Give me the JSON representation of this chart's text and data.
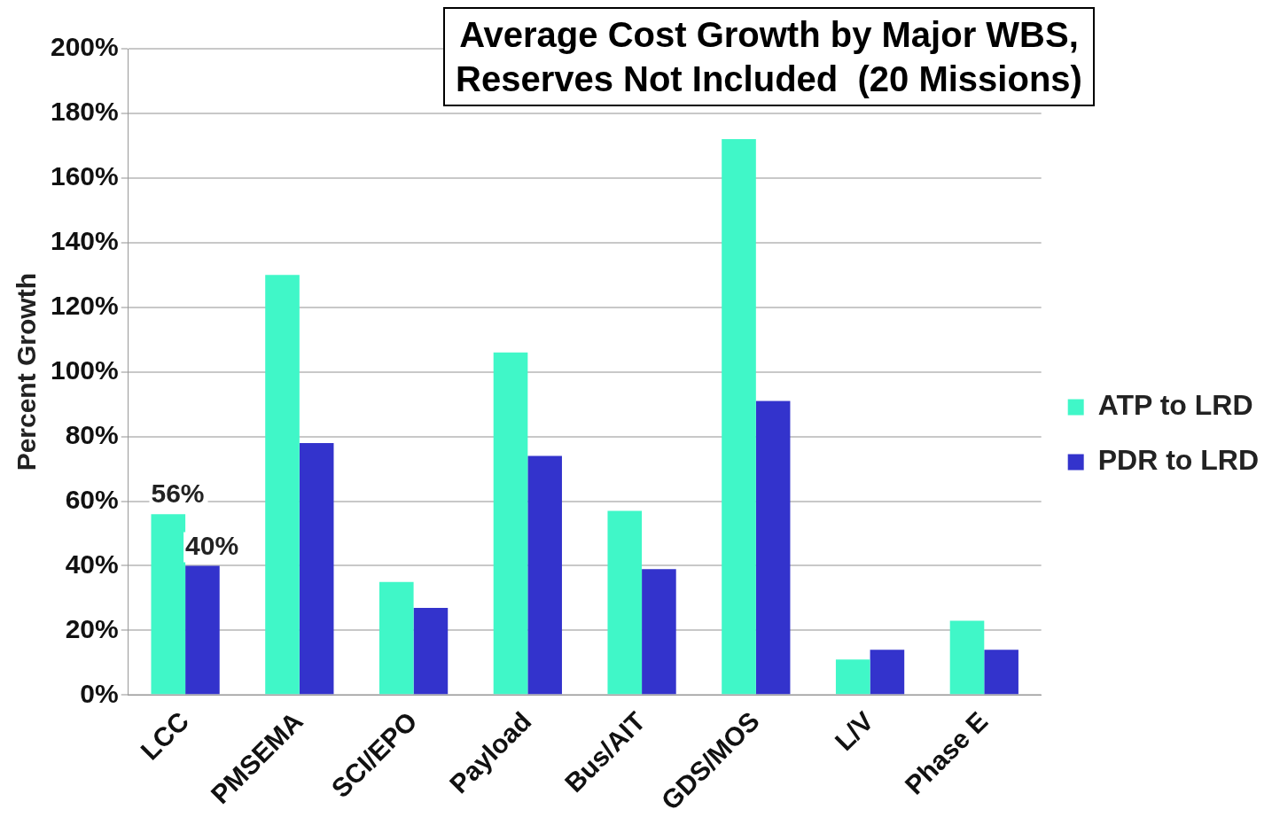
{
  "chart_data": {
    "type": "bar",
    "title": "Average Cost Growth by Major WBS,\nReserves Not Included  (20 Missions)",
    "ylabel": "Percent Growth",
    "categories": [
      "LCC",
      "PMSEMA",
      "SCI/EPO",
      "Payload",
      "Bus/AIT",
      "GDS/MOS",
      "L/V",
      "Phase E"
    ],
    "series": [
      {
        "name": "ATP to LRD",
        "color": "#40f7c8",
        "values": [
          56,
          130,
          35,
          106,
          57,
          172,
          11,
          23
        ],
        "value_labels": [
          "56%",
          null,
          null,
          null,
          null,
          null,
          null,
          null
        ]
      },
      {
        "name": "PDR to LRD",
        "color": "#3333cc",
        "values": [
          40,
          78,
          27,
          74,
          39,
          91,
          14,
          14
        ],
        "value_labels": [
          "40%",
          null,
          null,
          null,
          null,
          null,
          null,
          null
        ]
      }
    ],
    "ylim": [
      0,
      200
    ],
    "yticks": [
      {
        "value": 0,
        "label": "0%"
      },
      {
        "value": 20,
        "label": "20%"
      },
      {
        "value": 40,
        "label": "40%"
      },
      {
        "value": 60,
        "label": "60%"
      },
      {
        "value": 80,
        "label": "80%"
      },
      {
        "value": 100,
        "label": "100%"
      },
      {
        "value": 120,
        "label": "120%"
      },
      {
        "value": 140,
        "label": "140%"
      },
      {
        "value": 160,
        "label": "160%"
      },
      {
        "value": 180,
        "label": "180%"
      },
      {
        "value": 200,
        "label": "200%"
      }
    ],
    "grid": "y",
    "legend": "right"
  }
}
